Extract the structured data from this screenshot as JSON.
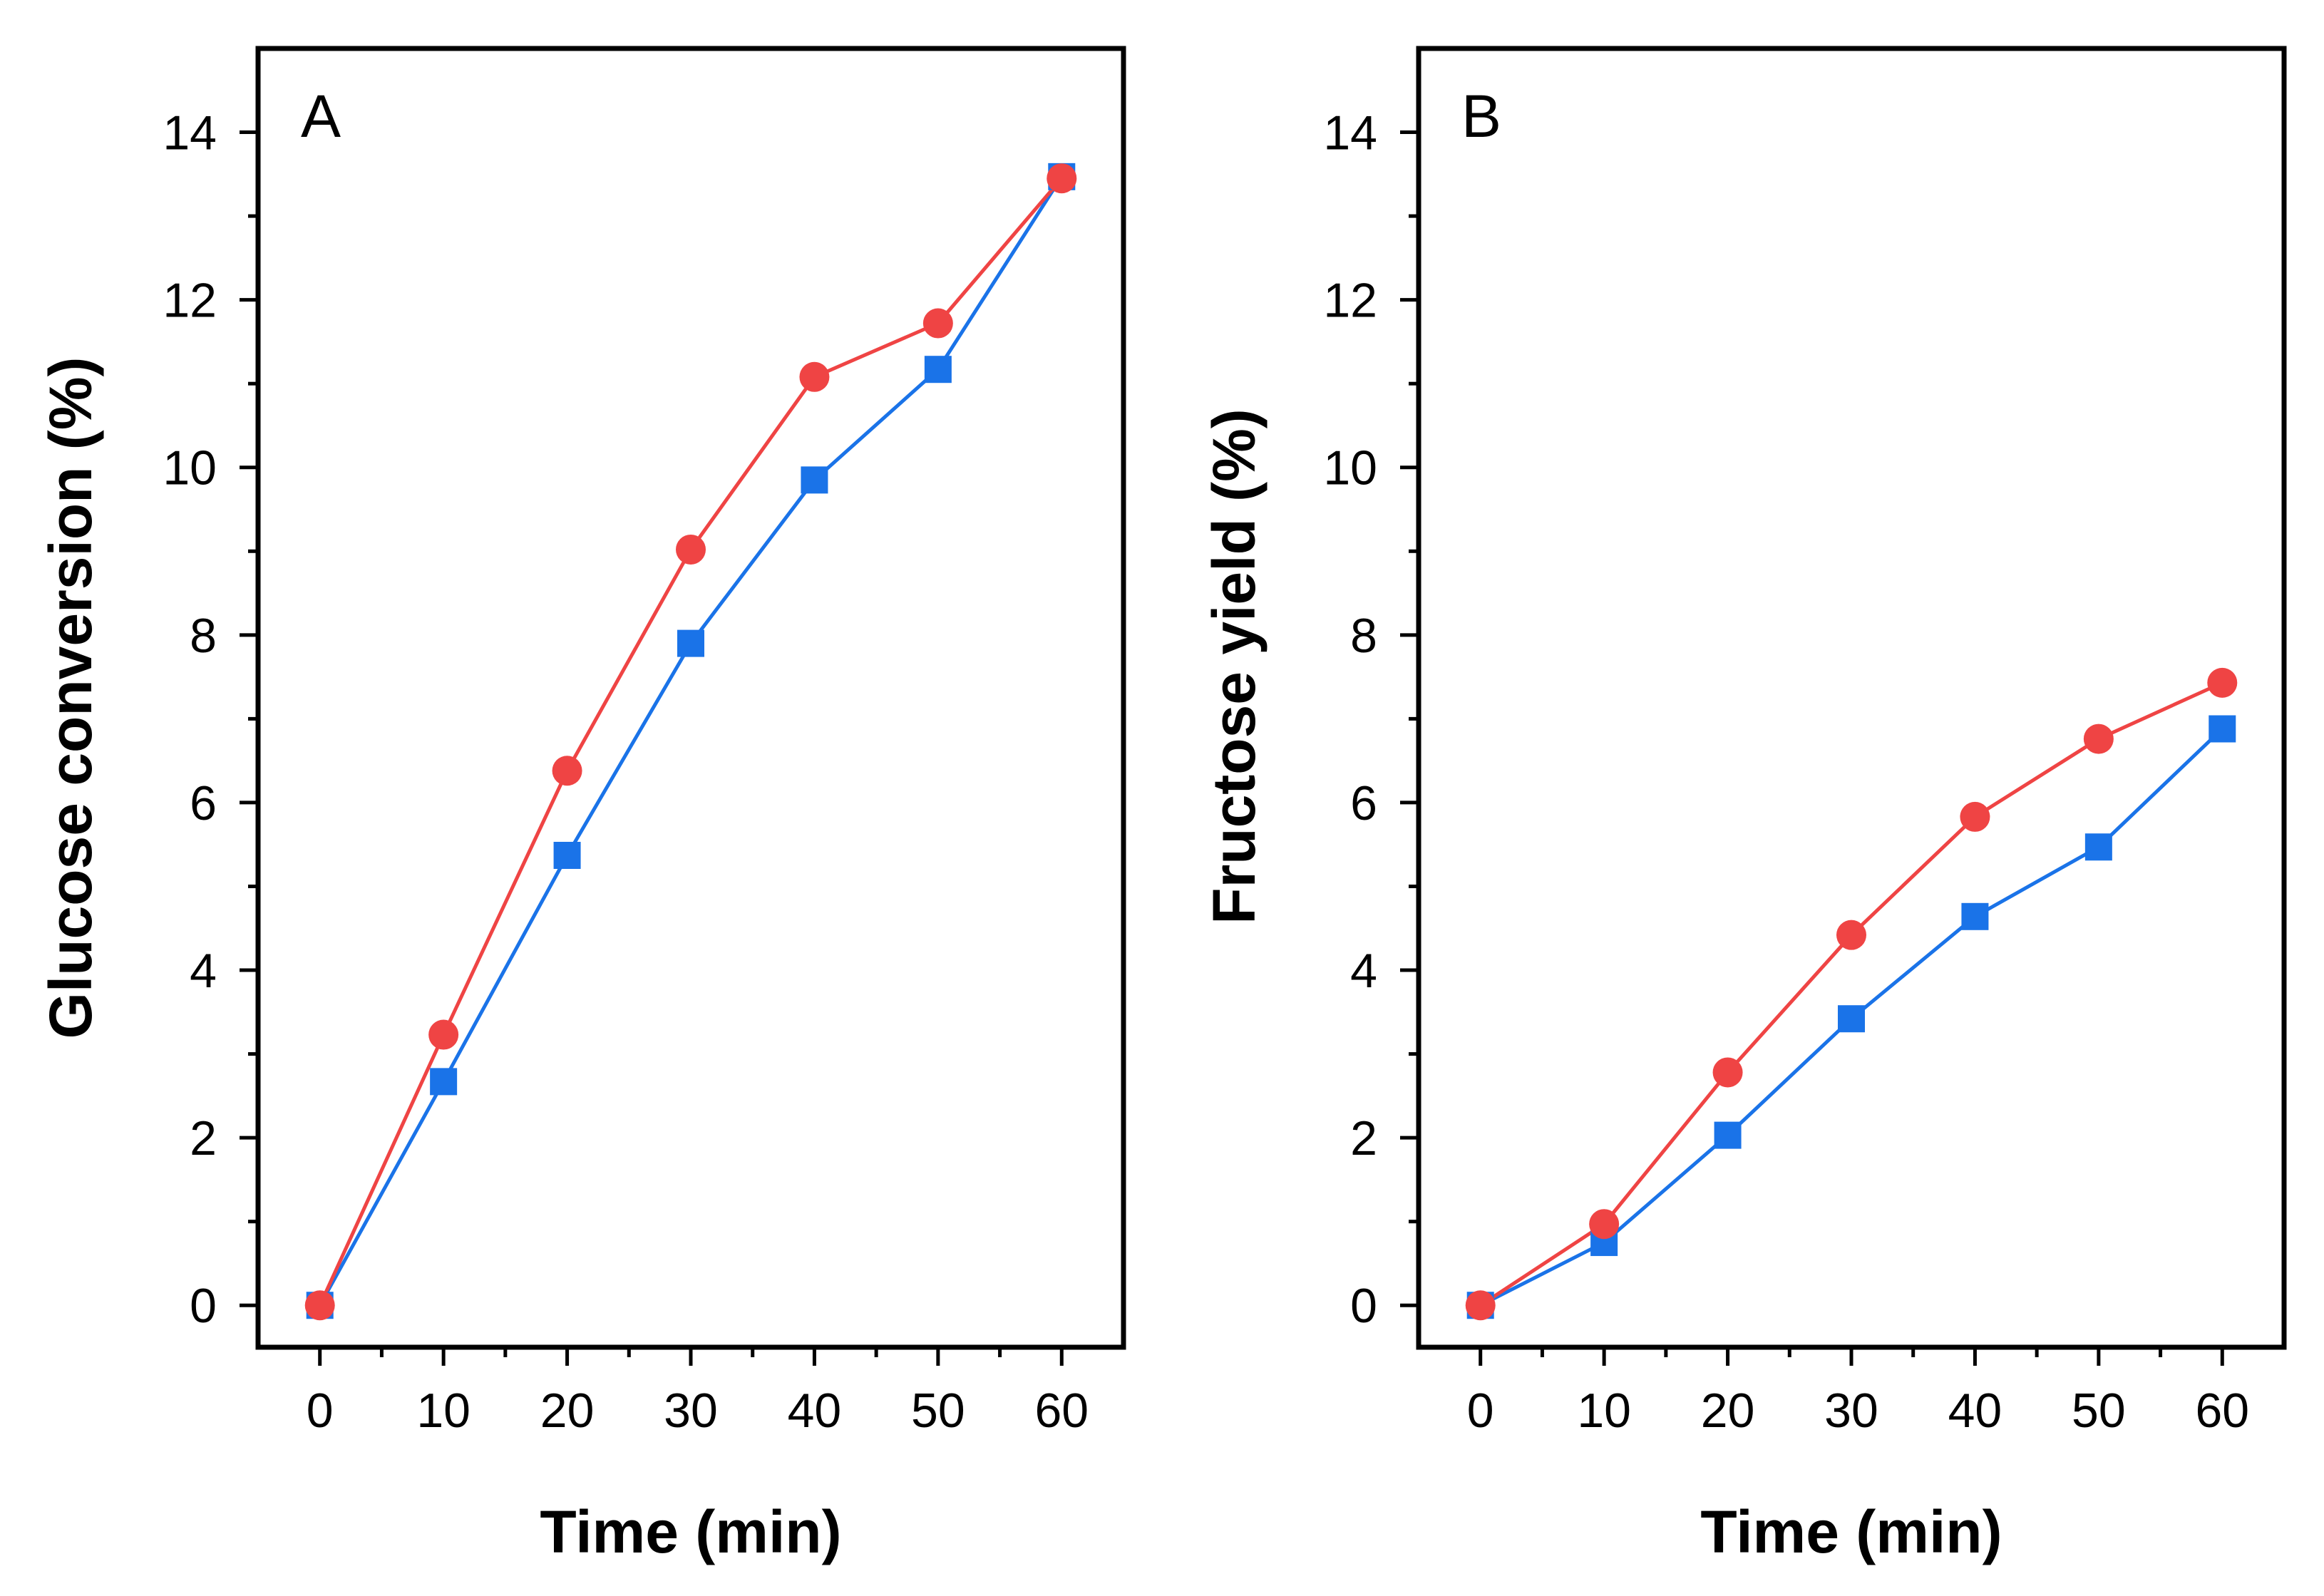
{
  "chart_data": [
    {
      "type": "line",
      "panel_label": "A",
      "xlabel": "Time (min)",
      "ylabel": "Glucose conversion (%)",
      "xlim": [
        -5,
        65
      ],
      "ylim": [
        -0.5,
        15
      ],
      "xticks": [
        0,
        10,
        20,
        30,
        40,
        50,
        60
      ],
      "yticks": [
        0,
        2,
        4,
        6,
        8,
        10,
        12,
        14
      ],
      "x": [
        0,
        10,
        20,
        30,
        40,
        50,
        60
      ],
      "series": [
        {
          "name": "series-blue-square",
          "color": "#1a73e8",
          "marker": "square",
          "values": [
            0,
            2.67,
            5.37,
            7.9,
            9.85,
            11.17,
            13.47
          ]
        },
        {
          "name": "series-red-circle",
          "color": "#ef4444",
          "marker": "circle",
          "values": [
            0,
            3.23,
            6.38,
            9.02,
            11.08,
            11.72,
            13.45
          ]
        }
      ]
    },
    {
      "type": "line",
      "panel_label": "B",
      "xlabel": "Time (min)",
      "ylabel": "Fructose yield (%)",
      "xlim": [
        -5,
        65
      ],
      "ylim": [
        -0.5,
        15
      ],
      "xticks": [
        0,
        10,
        20,
        30,
        40,
        50,
        60
      ],
      "yticks": [
        0,
        2,
        4,
        6,
        8,
        10,
        12,
        14
      ],
      "x": [
        0,
        10,
        20,
        30,
        40,
        50,
        60
      ],
      "series": [
        {
          "name": "series-blue-square",
          "color": "#1a73e8",
          "marker": "square",
          "values": [
            0,
            0.75,
            2.03,
            3.42,
            4.64,
            5.47,
            6.88
          ]
        },
        {
          "name": "series-red-circle",
          "color": "#ef4444",
          "marker": "circle",
          "values": [
            0,
            0.97,
            2.78,
            4.42,
            5.83,
            6.76,
            7.43
          ]
        }
      ]
    }
  ]
}
